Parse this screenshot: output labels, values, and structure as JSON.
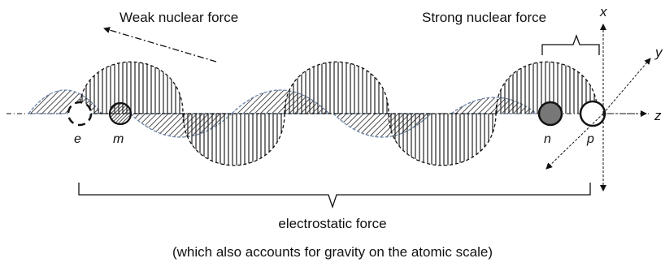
{
  "labels": {
    "weak_force": "Weak nuclear force",
    "strong_force": "Strong nuclear force",
    "electrostatic_force": "electrostatic force",
    "gravity_note": "(which also accounts for gravity on the atomic scale)"
  },
  "particles": {
    "e": "e",
    "m": "m",
    "n": "n",
    "p": "p"
  },
  "axes": {
    "x": "x",
    "y": "y",
    "z": "z"
  },
  "colors": {
    "stroke": "#111111",
    "hatch_outline": "#6a84a8"
  }
}
